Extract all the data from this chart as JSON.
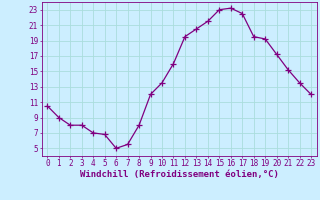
{
  "x": [
    0,
    1,
    2,
    3,
    4,
    5,
    6,
    7,
    8,
    9,
    10,
    11,
    12,
    13,
    14,
    15,
    16,
    17,
    18,
    19,
    20,
    21,
    22,
    23
  ],
  "y": [
    10.5,
    9.0,
    8.0,
    8.0,
    7.0,
    6.8,
    5.0,
    5.5,
    8.0,
    12.0,
    13.5,
    16.0,
    19.5,
    20.5,
    21.5,
    23.0,
    23.2,
    22.5,
    19.5,
    19.2,
    17.2,
    15.2,
    13.5,
    12.0
  ],
  "line_color": "#800080",
  "marker": "+",
  "marker_size": 4,
  "bg_color": "#cceeff",
  "grid_color": "#aadddd",
  "xlabel": "Windchill (Refroidissement éolien,°C)",
  "xlim": [
    -0.5,
    23.5
  ],
  "ylim": [
    4,
    24
  ],
  "yticks": [
    5,
    7,
    9,
    11,
    13,
    15,
    17,
    19,
    21,
    23
  ],
  "xticks": [
    0,
    1,
    2,
    3,
    4,
    5,
    6,
    7,
    8,
    9,
    10,
    11,
    12,
    13,
    14,
    15,
    16,
    17,
    18,
    19,
    20,
    21,
    22,
    23
  ],
  "axis_color": "#800080",
  "tick_color": "#800080",
  "label_fontsize": 6.5,
  "tick_fontsize": 5.5
}
